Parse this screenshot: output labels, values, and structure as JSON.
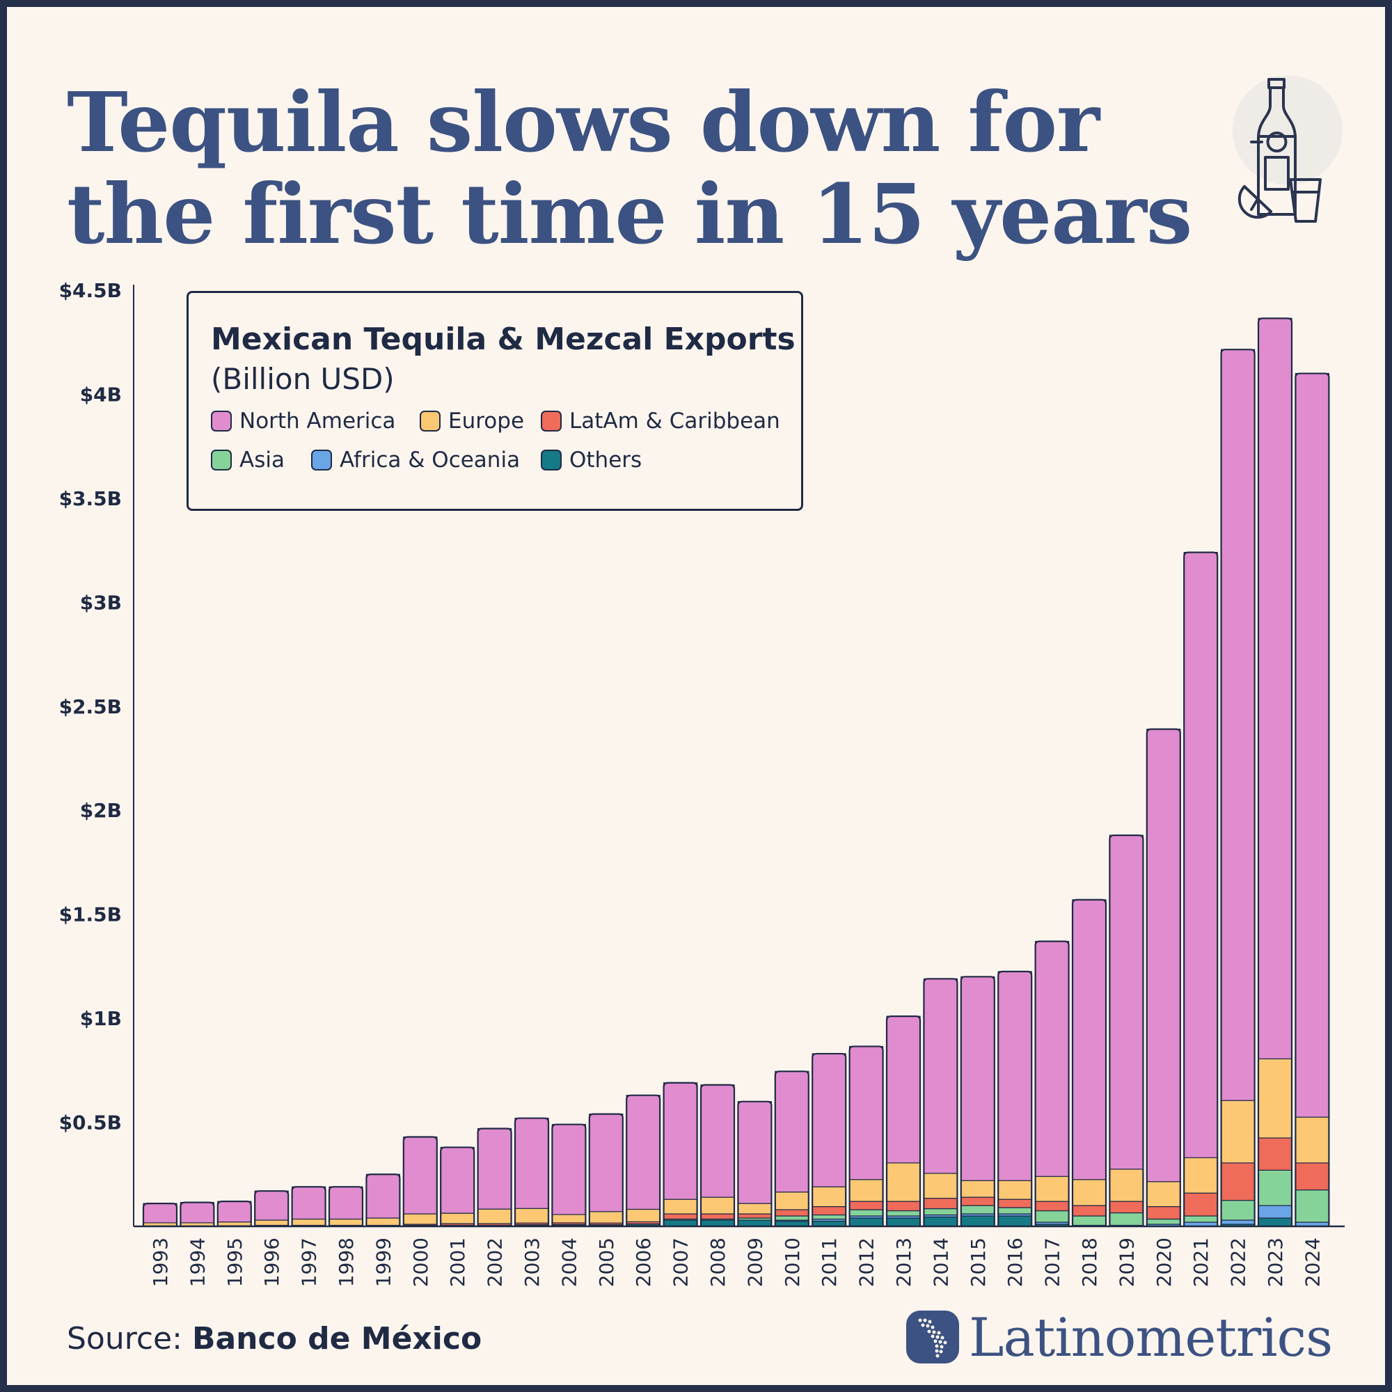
{
  "title": {
    "line1": "Tequila slows down for",
    "line2": "the first time in 15 years"
  },
  "source": {
    "prefix": "Source:",
    "name": "Banco de México"
  },
  "brand": {
    "name": "Latinometrics",
    "icon": "latin-america-dot-map-icon"
  },
  "icons": {
    "bottle": "tequila-bottle-and-shot-glass-icon"
  },
  "colors": {
    "title": "#3c5282",
    "text": "#1f2a44",
    "background": "#fcf5ee",
    "frame": "#26304b"
  },
  "chart_data": {
    "type": "bar",
    "stacked": true,
    "title": "Mexican Tequila & Mezcal Exports",
    "subtitle": "(Billion USD)",
    "xlabel": "",
    "ylabel": "",
    "ylim": [
      0,
      4.5
    ],
    "yticks": [
      {
        "value": 0.5,
        "label": "$0.5B"
      },
      {
        "value": 1,
        "label": "$1B"
      },
      {
        "value": 1.5,
        "label": "$1.5B"
      },
      {
        "value": 2,
        "label": "$2B"
      },
      {
        "value": 2.5,
        "label": "$2.5B"
      },
      {
        "value": 3,
        "label": "$3B"
      },
      {
        "value": 3.5,
        "label": "$3.5B"
      },
      {
        "value": 4,
        "label": "$4B"
      },
      {
        "value": 4.5,
        "label": "$4.5B"
      }
    ],
    "grid": false,
    "legend_position": "top-left",
    "categories": [
      "1993",
      "1994",
      "1995",
      "1996",
      "1997",
      "1998",
      "1999",
      "2000",
      "2001",
      "2002",
      "2003",
      "2004",
      "2005",
      "2006",
      "2007",
      "2008",
      "2009",
      "2010",
      "2011",
      "2012",
      "2013",
      "2014",
      "2015",
      "2016",
      "2017",
      "2018",
      "2019",
      "2020",
      "2021",
      "2022",
      "2023",
      "2024"
    ],
    "series": [
      {
        "name": "Others",
        "color": "#157a86",
        "values": [
          0,
          0,
          0,
          0,
          0,
          0,
          0,
          0.003,
          0.003,
          0.003,
          0.005,
          0.006,
          0.005,
          0.007,
          0.03,
          0.03,
          0.03,
          0.025,
          0.025,
          0.04,
          0.04,
          0.045,
          0.05,
          0.05,
          0.01,
          0,
          0,
          0,
          0,
          0.01,
          0.04,
          0
        ]
      },
      {
        "name": "Africa & Oceania",
        "color": "#6aa5e6",
        "values": [
          0,
          0,
          0,
          0,
          0,
          0,
          0,
          0,
          0,
          0,
          0,
          0,
          0,
          0,
          0,
          0,
          0,
          0.005,
          0.01,
          0.01,
          0.01,
          0.01,
          0.01,
          0.01,
          0.01,
          0.005,
          0.005,
          0.01,
          0.02,
          0.02,
          0.06,
          0.02
        ]
      },
      {
        "name": "Asia",
        "color": "#86d39a",
        "values": [
          0,
          0,
          0,
          0,
          0,
          0,
          0,
          0.002,
          0.002,
          0.002,
          0.003,
          0.003,
          0.003,
          0.005,
          0.005,
          0.005,
          0.01,
          0.02,
          0.02,
          0.03,
          0.025,
          0.03,
          0.04,
          0.03,
          0.055,
          0.045,
          0.06,
          0.025,
          0.03,
          0.095,
          0.17,
          0.155
        ]
      },
      {
        "name": "LatAm & Caribbean",
        "color": "#ef6b5a",
        "values": [
          0.002,
          0.002,
          0.003,
          0.005,
          0.005,
          0.005,
          0.005,
          0.005,
          0.008,
          0.008,
          0.008,
          0.008,
          0.008,
          0.01,
          0.025,
          0.025,
          0.02,
          0.03,
          0.04,
          0.04,
          0.045,
          0.05,
          0.04,
          0.04,
          0.045,
          0.05,
          0.055,
          0.06,
          0.11,
          0.18,
          0.155,
          0.13
        ]
      },
      {
        "name": "Europe",
        "color": "#fcc874",
        "values": [
          0.015,
          0.015,
          0.018,
          0.025,
          0.03,
          0.03,
          0.035,
          0.05,
          0.05,
          0.07,
          0.07,
          0.04,
          0.055,
          0.06,
          0.07,
          0.08,
          0.05,
          0.085,
          0.095,
          0.105,
          0.185,
          0.12,
          0.08,
          0.09,
          0.12,
          0.125,
          0.155,
          0.12,
          0.17,
          0.3,
          0.38,
          0.22
        ]
      },
      {
        "name": "North America",
        "color": "#e08ccf",
        "values": [
          0.093,
          0.098,
          0.099,
          0.14,
          0.155,
          0.155,
          0.21,
          0.37,
          0.317,
          0.387,
          0.434,
          0.433,
          0.469,
          0.548,
          0.56,
          0.54,
          0.49,
          0.58,
          0.64,
          0.64,
          0.705,
          0.935,
          0.98,
          1.005,
          1.13,
          1.345,
          1.605,
          2.175,
          2.91,
          3.61,
          3.56,
          3.575
        ]
      }
    ]
  }
}
